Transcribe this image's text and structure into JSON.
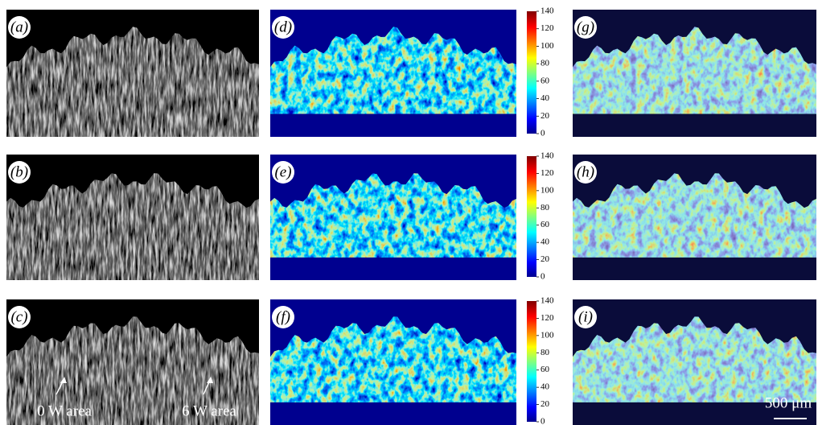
{
  "panels": [
    "(a)",
    "(b)",
    "(c)",
    "(d)",
    "(e)",
    "(f)",
    "(g)",
    "(h)",
    "(i)"
  ],
  "colorbars": [
    {
      "ticks": [
        0,
        20,
        40,
        60,
        80,
        100,
        120,
        140
      ]
    },
    {
      "ticks": [
        0,
        20,
        40,
        60,
        80,
        100,
        120,
        140
      ]
    },
    {
      "ticks": [
        0,
        20,
        40,
        60,
        80,
        100,
        120,
        140
      ]
    }
  ],
  "annotations": {
    "left": "0 W area",
    "right": "6 W area"
  },
  "scale_bar": "500 μm"
}
